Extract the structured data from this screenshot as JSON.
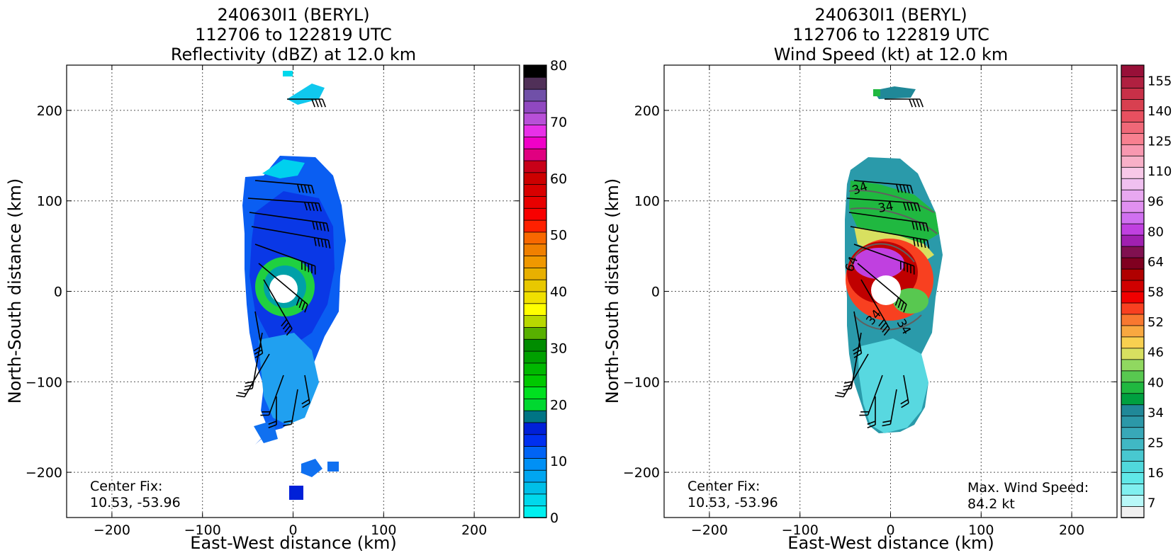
{
  "panels": [
    {
      "title_line1": "240630I1 (BERYL)",
      "title_line2": "112706 to 122819 UTC",
      "title_line3": "Reflectivity (dBZ) at 12.0 km",
      "xlabel": "East-West distance (km)",
      "ylabel": "North-South distance (km)",
      "annotation_left_line1": "Center Fix:",
      "annotation_left_line2": "10.53, -53.96",
      "annotation_right_line1": "",
      "annotation_right_line2": "",
      "contour_labels": []
    },
    {
      "title_line1": "240630I1 (BERYL)",
      "title_line2": "112706 to 122819 UTC",
      "title_line3": "Wind Speed (kt) at 12.0 km",
      "xlabel": "East-West distance (km)",
      "ylabel": "North-South distance (km)",
      "annotation_left_line1": "Center Fix:",
      "annotation_left_line2": "10.53, -53.96",
      "annotation_right_line1": "Max. Wind Speed:",
      "annotation_right_line2": "84.2 kt",
      "contour_labels": [
        "34",
        "34",
        "34",
        "34",
        "64"
      ]
    }
  ],
  "chart_data": [
    {
      "type": "heatmap",
      "title": "240630I1 (BERYL) 112706 to 122819 UTC Reflectivity (dBZ) at 12.0 km",
      "xlabel": "East-West distance (km)",
      "ylabel": "North-South distance (km)",
      "xlim": [
        -250,
        250
      ],
      "ylim": [
        -250,
        250
      ],
      "xticks": [
        -200,
        -100,
        0,
        100,
        200
      ],
      "yticks": [
        -200,
        -100,
        0,
        100,
        200
      ],
      "xtick_labels": [
        "−200",
        "−100",
        "0",
        "100",
        "200"
      ],
      "ytick_labels": [
        "−200",
        "−100",
        "0",
        "100",
        "200"
      ],
      "grid": true,
      "center_fix": [
        10.53,
        -53.96
      ],
      "colorbar": {
        "min": 0,
        "max": 80,
        "ticks": [
          0,
          10,
          20,
          30,
          40,
          50,
          60,
          70,
          80
        ],
        "colors": [
          "#00f0f0",
          "#00d8ec",
          "#00bfe8",
          "#00a6f0",
          "#0090f5",
          "#0064f5",
          "#0030f0",
          "#0020d8",
          "#007484",
          "#00d830",
          "#00e020",
          "#00c800",
          "#00b800",
          "#00a000",
          "#008c00",
          "#58b000",
          "#b8d800",
          "#ffff00",
          "#f0e000",
          "#e8c800",
          "#e8b000",
          "#f09800",
          "#f08000",
          "#f86800",
          "#ff2000",
          "#f80000",
          "#e80000",
          "#d80000",
          "#cc0000",
          "#c80018",
          "#e00080",
          "#f000c8",
          "#e830e8",
          "#b850d8",
          "#9048c0",
          "#7050a8",
          "#503058",
          "#000000"
        ]
      },
      "features": [
        {
          "name": "outer cloud region",
          "value_dbz": 12,
          "center": [
            0,
            0
          ],
          "extent_x": [
            -55,
            55
          ],
          "extent_y": [
            -165,
            150
          ]
        },
        {
          "name": "eyewall ring",
          "value_dbz": 22,
          "center": [
            -8,
            8
          ],
          "inner_radius": 15,
          "outer_radius": 35
        },
        {
          "name": "eye",
          "value_dbz": null,
          "center": [
            -8,
            0
          ],
          "radius": 15
        },
        {
          "name": "northern fragment",
          "value_dbz": 8,
          "center": [
            15,
            220
          ]
        },
        {
          "name": "southern fragment",
          "value_dbz": 10,
          "center": [
            10,
            -210
          ]
        }
      ]
    },
    {
      "type": "heatmap",
      "title": "240630I1 (BERYL) 112706 to 122819 UTC Wind Speed (kt) at 12.0 km",
      "xlabel": "East-West distance (km)",
      "ylabel": "North-South distance (km)",
      "xlim": [
        -250,
        250
      ],
      "ylim": [
        -250,
        250
      ],
      "xticks": [
        -200,
        -100,
        0,
        100,
        200
      ],
      "yticks": [
        -200,
        -100,
        0,
        100,
        200
      ],
      "xtick_labels": [
        "−200",
        "−100",
        "0",
        "100",
        "200"
      ],
      "ytick_labels": [
        "−200",
        "−100",
        "0",
        "100",
        "200"
      ],
      "grid": true,
      "center_fix": [
        10.53,
        -53.96
      ],
      "max_wind_speed_kt": 84.2,
      "contour_levels": [
        34,
        64
      ],
      "colorbar": {
        "ticks": [
          7,
          16,
          25,
          34,
          40,
          46,
          52,
          58,
          64,
          80,
          96,
          110,
          125,
          140,
          155
        ],
        "colors": [
          "#f0f0f0",
          "#b8f8f8",
          "#80f0f0",
          "#60e8e8",
          "#50d8dc",
          "#48c8d0",
          "#40b8c4",
          "#38a8b8",
          "#2c98a8",
          "#208898",
          "#00a040",
          "#20b840",
          "#58c850",
          "#90d860",
          "#d8e060",
          "#f8d050",
          "#f8a840",
          "#f87830",
          "#f84020",
          "#f00000",
          "#d00000",
          "#b00000",
          "#800020",
          "#801050",
          "#a020b0",
          "#c040e0",
          "#d070f0",
          "#e090f0",
          "#e8a8f0",
          "#f0c0f0",
          "#f8c8e8",
          "#f8b0c8",
          "#f898b0",
          "#f88090",
          "#f06878",
          "#e85060",
          "#d84050",
          "#c83048",
          "#b02040",
          "#981038"
        ]
      },
      "features": [
        {
          "name": "outer wind field",
          "value_kt": 25,
          "extent_x": [
            -50,
            55
          ],
          "extent_y": [
            -155,
            145
          ]
        },
        {
          "name": "southern weak winds",
          "value_kt": 16,
          "center": [
            10,
            -115
          ]
        },
        {
          "name": "northern band green",
          "value_kt": 38,
          "center": [
            -5,
            80
          ]
        },
        {
          "name": "inner core ring max",
          "value_kt": 84.2,
          "center": [
            -10,
            30
          ]
        },
        {
          "name": "eye",
          "value_kt": null,
          "center": [
            -5,
            0
          ],
          "radius": 15
        }
      ]
    }
  ]
}
